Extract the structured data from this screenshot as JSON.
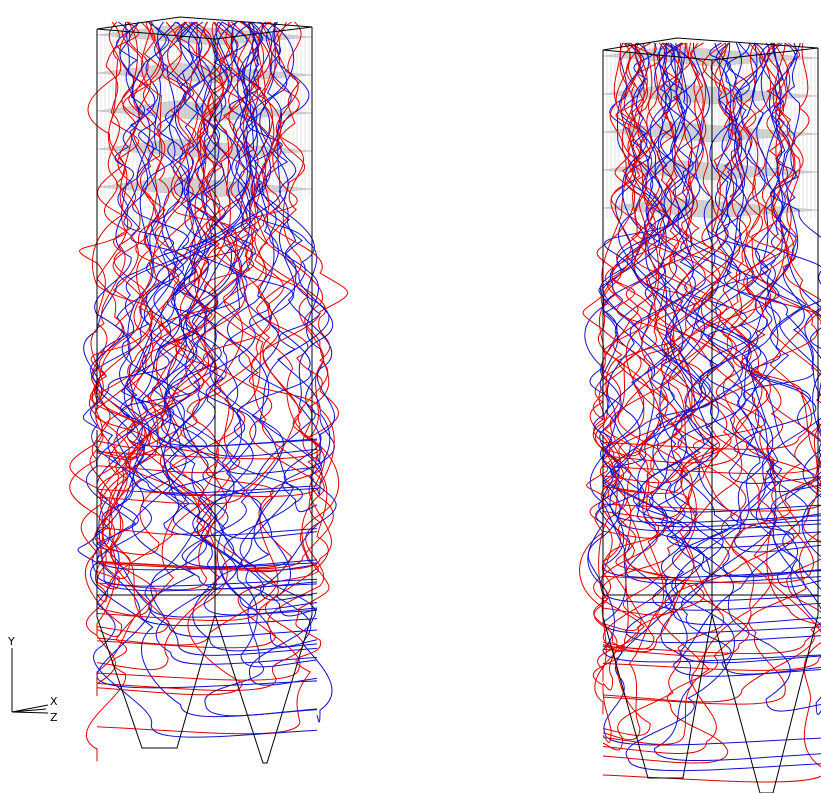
{
  "axes": {
    "y": "Y",
    "x": "X",
    "z": "Z"
  }
}
